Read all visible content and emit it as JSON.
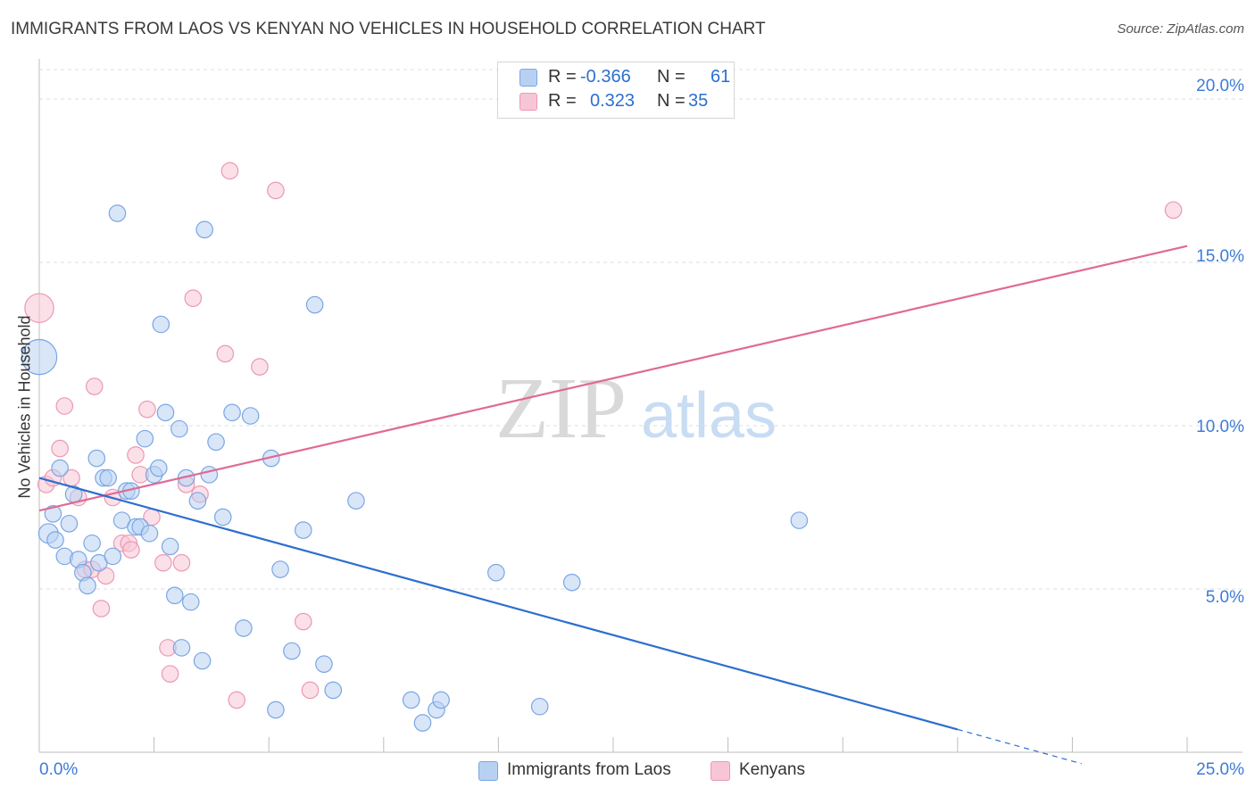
{
  "title": "IMMIGRANTS FROM LAOS VS KENYAN NO VEHICLES IN HOUSEHOLD CORRELATION CHART",
  "source": "Source: ZipAtlas.com",
  "watermark": {
    "part1": "ZIP",
    "part2": "atlas"
  },
  "legend_box": {
    "rows": [
      {
        "r_label": "R =",
        "r_value": "-0.366",
        "n_label": "N =",
        "n_value": "61"
      },
      {
        "r_label": "R =",
        "r_value": "0.323",
        "n_label": "N =",
        "n_value": "35"
      }
    ]
  },
  "bottom_legend": {
    "laos": "Immigrants from Laos",
    "kenyans": "Kenyans"
  },
  "y_axis": {
    "label": "No Vehicles in Household",
    "ticks": [
      "20.0%",
      "15.0%",
      "10.0%",
      "5.0%"
    ]
  },
  "x_axis": {
    "min_label": "0.0%",
    "max_label": "25.0%"
  },
  "colors": {
    "laos_fill": "#b8d1f3",
    "laos_stroke": "#7aa6e4",
    "laos_line": "#2c6fce",
    "kenya_fill": "#f7c6d6",
    "kenya_stroke": "#ec98b4",
    "kenya_line": "#e06a94",
    "tick_text": "#3d7bd6",
    "grid": "#dcdcdc"
  },
  "chart_data": {
    "type": "scatter",
    "xlim": [
      0,
      25
    ],
    "ylim": [
      0,
      20.9
    ],
    "grid": true,
    "series": [
      {
        "name": "Immigrants from Laos",
        "points": [
          [
            0.0,
            12.1,
            22
          ],
          [
            0.2,
            6.7,
            12
          ],
          [
            0.3,
            7.3,
            10
          ],
          [
            0.35,
            6.5,
            10
          ],
          [
            0.45,
            8.7,
            10
          ],
          [
            0.55,
            6.0,
            10
          ],
          [
            0.65,
            7.0,
            10
          ],
          [
            0.75,
            7.9,
            10
          ],
          [
            0.85,
            5.9,
            10
          ],
          [
            0.95,
            5.5,
            10
          ],
          [
            1.05,
            5.1,
            10
          ],
          [
            1.15,
            6.4,
            10
          ],
          [
            1.25,
            9.0,
            10
          ],
          [
            1.3,
            5.8,
            10
          ],
          [
            1.4,
            8.4,
            10
          ],
          [
            1.5,
            8.4,
            10
          ],
          [
            1.6,
            6.0,
            10
          ],
          [
            1.7,
            16.5,
            10
          ],
          [
            1.8,
            7.1,
            10
          ],
          [
            1.9,
            8.0,
            10
          ],
          [
            2.0,
            8.0,
            10
          ],
          [
            2.1,
            6.9,
            10
          ],
          [
            2.2,
            6.9,
            10
          ],
          [
            2.3,
            9.6,
            10
          ],
          [
            2.4,
            6.7,
            10
          ],
          [
            2.5,
            8.5,
            10
          ],
          [
            2.6,
            8.7,
            10
          ],
          [
            2.65,
            13.1,
            10
          ],
          [
            2.75,
            10.4,
            10
          ],
          [
            2.85,
            6.3,
            10
          ],
          [
            2.95,
            4.8,
            10
          ],
          [
            3.05,
            9.9,
            10
          ],
          [
            3.1,
            3.2,
            10
          ],
          [
            3.2,
            8.4,
            10
          ],
          [
            3.3,
            4.6,
            10
          ],
          [
            3.45,
            7.7,
            10
          ],
          [
            3.55,
            2.8,
            10
          ],
          [
            3.6,
            16.0,
            10
          ],
          [
            3.7,
            8.5,
            10
          ],
          [
            3.85,
            9.5,
            10
          ],
          [
            4.0,
            7.2,
            10
          ],
          [
            4.2,
            10.4,
            10
          ],
          [
            4.45,
            3.8,
            10
          ],
          [
            4.6,
            10.3,
            10
          ],
          [
            5.05,
            9.0,
            10
          ],
          [
            5.15,
            1.3,
            10
          ],
          [
            5.25,
            5.6,
            10
          ],
          [
            5.5,
            3.1,
            10
          ],
          [
            5.75,
            6.8,
            10
          ],
          [
            6.0,
            13.7,
            10
          ],
          [
            6.2,
            2.7,
            10
          ],
          [
            6.4,
            1.9,
            10
          ],
          [
            6.9,
            7.7,
            10
          ],
          [
            8.1,
            1.6,
            10
          ],
          [
            8.35,
            0.9,
            10
          ],
          [
            8.65,
            1.3,
            10
          ],
          [
            8.75,
            1.6,
            10
          ],
          [
            9.95,
            5.5,
            10
          ],
          [
            10.9,
            1.4,
            10
          ],
          [
            11.6,
            5.2,
            10
          ],
          [
            16.55,
            7.1,
            10
          ]
        ],
        "trend": {
          "x0": 0,
          "y0": 8.4,
          "x1": 20,
          "y1": 0.7,
          "dash_to_x": 22.7,
          "dash_to_y": -0.35
        }
      },
      {
        "name": "Kenyans",
        "points": [
          [
            0.0,
            13.6,
            18
          ],
          [
            0.15,
            8.2,
            10
          ],
          [
            0.3,
            8.4,
            10
          ],
          [
            0.45,
            9.3,
            10
          ],
          [
            0.55,
            10.6,
            10
          ],
          [
            0.7,
            8.4,
            10
          ],
          [
            0.85,
            7.8,
            10
          ],
          [
            1.0,
            5.6,
            10
          ],
          [
            1.15,
            5.6,
            10
          ],
          [
            1.2,
            11.2,
            10
          ],
          [
            1.35,
            4.4,
            10
          ],
          [
            1.45,
            5.4,
            10
          ],
          [
            1.6,
            7.8,
            10
          ],
          [
            1.8,
            6.4,
            10
          ],
          [
            1.95,
            6.4,
            10
          ],
          [
            2.0,
            6.2,
            10
          ],
          [
            2.1,
            9.1,
            10
          ],
          [
            2.2,
            8.5,
            10
          ],
          [
            2.35,
            10.5,
            10
          ],
          [
            2.45,
            7.2,
            10
          ],
          [
            2.7,
            5.8,
            10
          ],
          [
            2.8,
            3.2,
            10
          ],
          [
            2.85,
            2.4,
            10
          ],
          [
            3.1,
            5.8,
            10
          ],
          [
            3.2,
            8.2,
            10
          ],
          [
            3.35,
            13.9,
            10
          ],
          [
            3.5,
            7.9,
            10
          ],
          [
            4.05,
            12.2,
            10
          ],
          [
            4.15,
            17.8,
            10
          ],
          [
            4.3,
            1.6,
            10
          ],
          [
            4.8,
            11.8,
            10
          ],
          [
            5.15,
            17.2,
            10
          ],
          [
            5.75,
            4.0,
            10
          ],
          [
            5.9,
            1.9,
            10
          ],
          [
            24.7,
            16.6,
            10
          ]
        ],
        "trend": {
          "x0": 0,
          "y0": 7.4,
          "x1": 25,
          "y1": 15.5
        }
      }
    ]
  }
}
